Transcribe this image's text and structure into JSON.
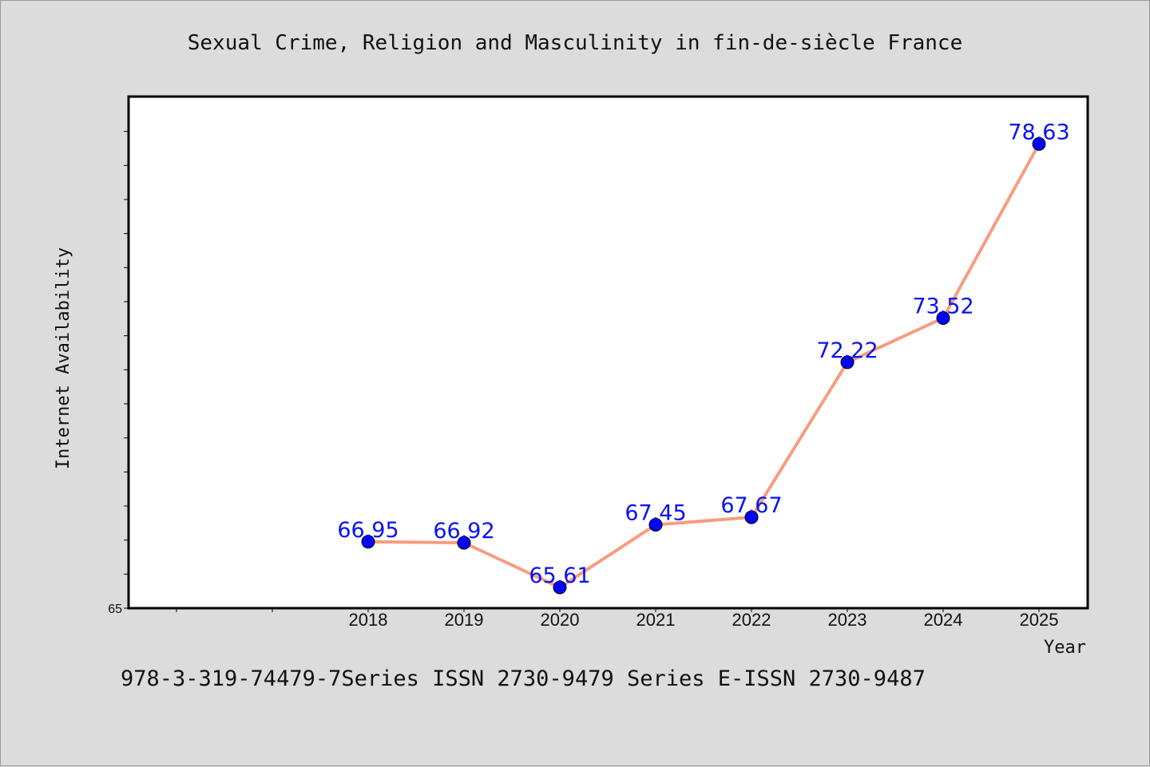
{
  "title": "Sexual Crime, Religion and Masculinity in fin-de-siècle France",
  "footer": "978-3-319-74479-7Series ISSN 2730-9479 Series E-ISSN 2730-9487",
  "colors": {
    "line": "#f79d7e",
    "marker": "#0000ff",
    "label": "#0a12f2",
    "background": "#dcdcdc",
    "plot": "#ffffff"
  },
  "chart_data": {
    "type": "line",
    "title": "Sexual Crime, Religion and Masculinity in fin-de-siècle France",
    "xlabel": "Year",
    "ylabel": "Internet Availability",
    "categories": [
      "2018",
      "2019",
      "2020",
      "2021",
      "2022",
      "2023",
      "2024",
      "2025"
    ],
    "series": [
      {
        "values": [
          66.95,
          66.92,
          65.61,
          67.45,
          67.67,
          72.22,
          73.52,
          78.63
        ]
      }
    ],
    "data_labels": [
      "66.95",
      "66.92",
      "65.61",
      "67.45",
      "67.67",
      "72.22",
      "73.52",
      "78.63"
    ],
    "ylim": [
      65,
      80
    ],
    "y_tick_labels": [
      "65"
    ],
    "grid": false,
    "legend": "none"
  }
}
